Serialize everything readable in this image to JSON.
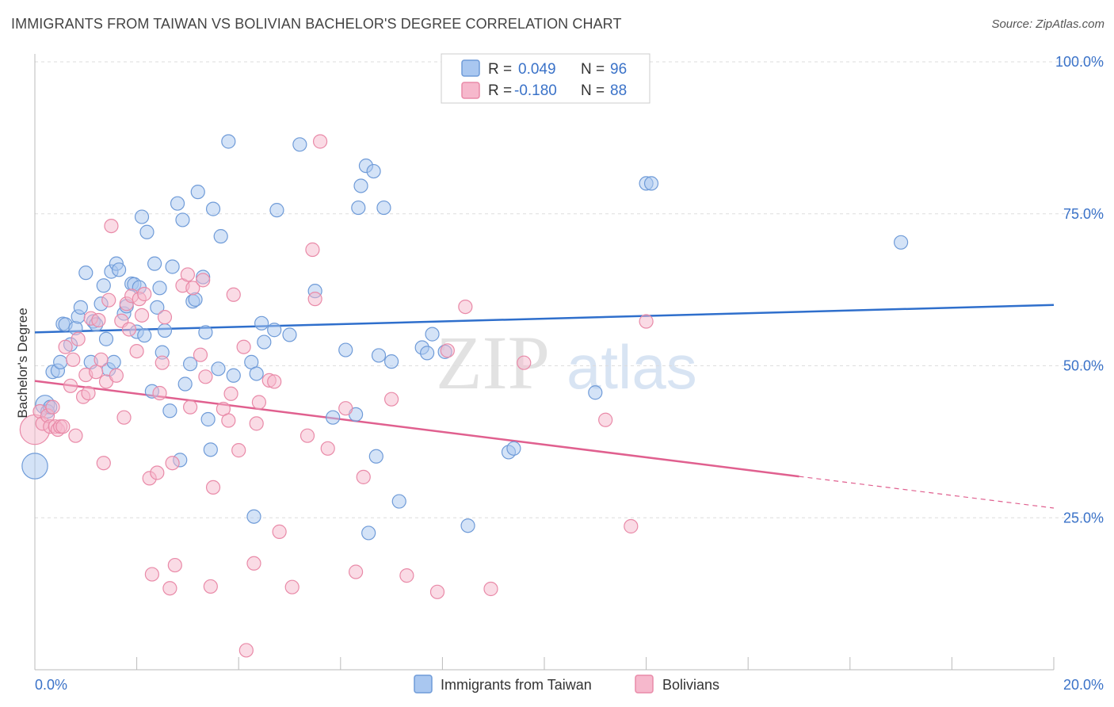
{
  "header": {
    "title": "IMMIGRANTS FROM TAIWAN VS BOLIVIAN BACHELOR'S DEGREE CORRELATION CHART",
    "source": "Source: ZipAtlas.com"
  },
  "watermark": {
    "zip": "ZIP",
    "atlas": "atlas"
  },
  "legend": {
    "r_label": "R =",
    "n_label": "N =",
    "rows": [
      {
        "series": "taiwan",
        "r": "0.049",
        "n": "96"
      },
      {
        "series": "bolivian",
        "r": "-0.180",
        "n": "88"
      }
    ]
  },
  "colors": {
    "taiwan_fill": "#a9c7f0",
    "taiwan_stroke": "#6f9bd8",
    "taiwan_line": "#2f6fcc",
    "bolivian_fill": "#f6b8cc",
    "bolivian_stroke": "#e98aa8",
    "bolivian_line": "#e0608f",
    "tick_text": "#3a72c8",
    "grid": "#dddddd"
  },
  "chart_data": {
    "type": "scatter",
    "title": "IMMIGRANTS FROM TAIWAN VS BOLIVIAN BACHELOR'S DEGREE CORRELATION CHART",
    "xlabel": "",
    "ylabel": "Bachelor's Degree",
    "xlim": [
      0,
      20
    ],
    "ylim": [
      0,
      100
    ],
    "x_tick_labels": [
      "0.0%",
      "20.0%"
    ],
    "y_ticks": [
      25,
      50,
      75,
      100
    ],
    "y_tick_labels": [
      "25.0%",
      "50.0%",
      "75.0%",
      "100.0%"
    ],
    "grid": true,
    "legend_position": "bottom-center",
    "series": [
      {
        "name": "Immigrants from Taiwan",
        "r": 0.049,
        "n": 96,
        "trend": {
          "x": [
            0,
            20
          ],
          "y": [
            55.5,
            60
          ]
        },
        "points": [
          {
            "x": 0.0,
            "y": 33.5,
            "s": 1.9
          },
          {
            "x": 0.2,
            "y": 43.6,
            "s": 1.4
          },
          {
            "x": 0.25,
            "y": 42.5
          },
          {
            "x": 0.3,
            "y": 43.2
          },
          {
            "x": 0.35,
            "y": 49
          },
          {
            "x": 0.45,
            "y": 49.2
          },
          {
            "x": 0.5,
            "y": 50.6
          },
          {
            "x": 0.55,
            "y": 56.9
          },
          {
            "x": 0.6,
            "y": 56.8
          },
          {
            "x": 0.7,
            "y": 53.5
          },
          {
            "x": 0.8,
            "y": 56.2
          },
          {
            "x": 0.85,
            "y": 58.1
          },
          {
            "x": 0.9,
            "y": 59.6
          },
          {
            "x": 1.0,
            "y": 65.3
          },
          {
            "x": 1.1,
            "y": 50.6
          },
          {
            "x": 1.15,
            "y": 57.3
          },
          {
            "x": 1.2,
            "y": 56.8
          },
          {
            "x": 1.3,
            "y": 60.2
          },
          {
            "x": 1.35,
            "y": 63.2
          },
          {
            "x": 1.4,
            "y": 54.4
          },
          {
            "x": 1.45,
            "y": 49.4
          },
          {
            "x": 1.5,
            "y": 65.5
          },
          {
            "x": 1.55,
            "y": 50.6
          },
          {
            "x": 1.6,
            "y": 66.8
          },
          {
            "x": 1.65,
            "y": 65.8
          },
          {
            "x": 1.75,
            "y": 58.6
          },
          {
            "x": 1.8,
            "y": 59.8
          },
          {
            "x": 1.9,
            "y": 63.5
          },
          {
            "x": 1.95,
            "y": 63.4
          },
          {
            "x": 2.0,
            "y": 55.6
          },
          {
            "x": 2.05,
            "y": 62.9
          },
          {
            "x": 2.1,
            "y": 74.5
          },
          {
            "x": 2.15,
            "y": 55
          },
          {
            "x": 2.2,
            "y": 72
          },
          {
            "x": 2.3,
            "y": 45.8
          },
          {
            "x": 2.35,
            "y": 66.8
          },
          {
            "x": 2.4,
            "y": 59.6
          },
          {
            "x": 2.45,
            "y": 62.8
          },
          {
            "x": 2.5,
            "y": 52.2
          },
          {
            "x": 2.55,
            "y": 55.8
          },
          {
            "x": 2.65,
            "y": 42.6
          },
          {
            "x": 2.7,
            "y": 66.3
          },
          {
            "x": 2.8,
            "y": 76.7
          },
          {
            "x": 2.85,
            "y": 34.5
          },
          {
            "x": 2.9,
            "y": 74
          },
          {
            "x": 2.95,
            "y": 47
          },
          {
            "x": 3.05,
            "y": 50.3
          },
          {
            "x": 3.1,
            "y": 60.6
          },
          {
            "x": 3.15,
            "y": 60.9
          },
          {
            "x": 3.2,
            "y": 78.6
          },
          {
            "x": 3.3,
            "y": 64.6
          },
          {
            "x": 3.35,
            "y": 55.5
          },
          {
            "x": 3.4,
            "y": 41.2
          },
          {
            "x": 3.45,
            "y": 36.2
          },
          {
            "x": 3.5,
            "y": 75.8
          },
          {
            "x": 3.6,
            "y": 49.5
          },
          {
            "x": 3.65,
            "y": 71.3
          },
          {
            "x": 3.8,
            "y": 86.9
          },
          {
            "x": 3.9,
            "y": 48.4
          },
          {
            "x": 4.25,
            "y": 50.6
          },
          {
            "x": 4.3,
            "y": 25.2
          },
          {
            "x": 4.35,
            "y": 48.7
          },
          {
            "x": 4.45,
            "y": 57
          },
          {
            "x": 4.5,
            "y": 53.9
          },
          {
            "x": 4.7,
            "y": 55.9
          },
          {
            "x": 4.75,
            "y": 75.6
          },
          {
            "x": 5.0,
            "y": 55.1
          },
          {
            "x": 5.2,
            "y": 86.4
          },
          {
            "x": 5.5,
            "y": 62.3
          },
          {
            "x": 5.85,
            "y": 41.5
          },
          {
            "x": 6.1,
            "y": 52.6
          },
          {
            "x": 6.3,
            "y": 42
          },
          {
            "x": 6.35,
            "y": 76
          },
          {
            "x": 6.4,
            "y": 79.6
          },
          {
            "x": 6.5,
            "y": 82.9
          },
          {
            "x": 6.55,
            "y": 22.5
          },
          {
            "x": 6.65,
            "y": 82
          },
          {
            "x": 6.7,
            "y": 35.1
          },
          {
            "x": 6.75,
            "y": 51.7
          },
          {
            "x": 6.85,
            "y": 76
          },
          {
            "x": 7.0,
            "y": 50.7
          },
          {
            "x": 7.15,
            "y": 27.7
          },
          {
            "x": 7.6,
            "y": 53
          },
          {
            "x": 7.7,
            "y": 52.1
          },
          {
            "x": 7.8,
            "y": 55.2
          },
          {
            "x": 8.05,
            "y": 52.3
          },
          {
            "x": 8.5,
            "y": 23.7
          },
          {
            "x": 9.3,
            "y": 35.8
          },
          {
            "x": 9.4,
            "y": 36.4
          },
          {
            "x": 11.0,
            "y": 45.6
          },
          {
            "x": 12.0,
            "y": 80
          },
          {
            "x": 12.1,
            "y": 80
          },
          {
            "x": 17.0,
            "y": 70.3
          }
        ]
      },
      {
        "name": "Bolivians",
        "r": -0.18,
        "n": 88,
        "trend": {
          "x": [
            0,
            15
          ],
          "y": [
            47.5,
            31.8
          ]
        },
        "trend_dashed": {
          "x": [
            15,
            20
          ],
          "y": [
            31.8,
            26.6
          ]
        },
        "points": [
          {
            "x": 0.0,
            "y": 39.5,
            "s": 2.2
          },
          {
            "x": 0.1,
            "y": 42.5
          },
          {
            "x": 0.15,
            "y": 40.5
          },
          {
            "x": 0.25,
            "y": 41.8
          },
          {
            "x": 0.3,
            "y": 40
          },
          {
            "x": 0.35,
            "y": 43.2
          },
          {
            "x": 0.4,
            "y": 40
          },
          {
            "x": 0.45,
            "y": 39.5
          },
          {
            "x": 0.5,
            "y": 40
          },
          {
            "x": 0.55,
            "y": 40
          },
          {
            "x": 0.6,
            "y": 53.1
          },
          {
            "x": 0.7,
            "y": 46.7
          },
          {
            "x": 0.75,
            "y": 51
          },
          {
            "x": 0.8,
            "y": 38.5
          },
          {
            "x": 0.85,
            "y": 54.4
          },
          {
            "x": 0.95,
            "y": 44.9
          },
          {
            "x": 1.0,
            "y": 48.5
          },
          {
            "x": 1.05,
            "y": 45.5
          },
          {
            "x": 1.1,
            "y": 57.8
          },
          {
            "x": 1.2,
            "y": 49
          },
          {
            "x": 1.25,
            "y": 57.5
          },
          {
            "x": 1.3,
            "y": 51
          },
          {
            "x": 1.35,
            "y": 34
          },
          {
            "x": 1.4,
            "y": 47.4
          },
          {
            "x": 1.45,
            "y": 60.8
          },
          {
            "x": 1.5,
            "y": 73
          },
          {
            "x": 1.6,
            "y": 48.4
          },
          {
            "x": 1.7,
            "y": 57.4
          },
          {
            "x": 1.75,
            "y": 41.5
          },
          {
            "x": 1.8,
            "y": 60.2
          },
          {
            "x": 1.85,
            "y": 56
          },
          {
            "x": 1.9,
            "y": 61.5
          },
          {
            "x": 2.0,
            "y": 52.4
          },
          {
            "x": 2.05,
            "y": 61
          },
          {
            "x": 2.1,
            "y": 58.3
          },
          {
            "x": 2.15,
            "y": 61.8
          },
          {
            "x": 2.25,
            "y": 31.5
          },
          {
            "x": 2.3,
            "y": 15.7
          },
          {
            "x": 2.4,
            "y": 32.4
          },
          {
            "x": 2.45,
            "y": 45.5
          },
          {
            "x": 2.5,
            "y": 50.5
          },
          {
            "x": 2.55,
            "y": 58
          },
          {
            "x": 2.65,
            "y": 13.4
          },
          {
            "x": 2.7,
            "y": 34
          },
          {
            "x": 2.75,
            "y": 17.2
          },
          {
            "x": 2.9,
            "y": 63.2
          },
          {
            "x": 3.0,
            "y": 65
          },
          {
            "x": 3.05,
            "y": 43.2
          },
          {
            "x": 3.1,
            "y": 62.8
          },
          {
            "x": 3.25,
            "y": 51.8
          },
          {
            "x": 3.3,
            "y": 64.1
          },
          {
            "x": 3.35,
            "y": 48.2
          },
          {
            "x": 3.45,
            "y": 13.7
          },
          {
            "x": 3.5,
            "y": 30
          },
          {
            "x": 3.7,
            "y": 42.9
          },
          {
            "x": 3.8,
            "y": 41
          },
          {
            "x": 3.85,
            "y": 45.4
          },
          {
            "x": 3.9,
            "y": 61.7
          },
          {
            "x": 4.0,
            "y": 36.1
          },
          {
            "x": 4.1,
            "y": 53.1
          },
          {
            "x": 4.15,
            "y": 3.2
          },
          {
            "x": 4.3,
            "y": 17.5
          },
          {
            "x": 4.35,
            "y": 40.5
          },
          {
            "x": 4.4,
            "y": 44
          },
          {
            "x": 4.6,
            "y": 47.6
          },
          {
            "x": 4.7,
            "y": 47.4
          },
          {
            "x": 4.8,
            "y": 22.7
          },
          {
            "x": 5.05,
            "y": 13.6
          },
          {
            "x": 5.35,
            "y": 38.5
          },
          {
            "x": 5.45,
            "y": 69.1
          },
          {
            "x": 5.5,
            "y": 61
          },
          {
            "x": 5.6,
            "y": 86.9
          },
          {
            "x": 5.75,
            "y": 36.4
          },
          {
            "x": 6.1,
            "y": 43
          },
          {
            "x": 6.3,
            "y": 16.1
          },
          {
            "x": 6.45,
            "y": 31.7
          },
          {
            "x": 7.0,
            "y": 44.5
          },
          {
            "x": 7.3,
            "y": 15.5
          },
          {
            "x": 7.9,
            "y": 12.8
          },
          {
            "x": 8.1,
            "y": 52.5
          },
          {
            "x": 8.45,
            "y": 59.7
          },
          {
            "x": 8.95,
            "y": 13.3
          },
          {
            "x": 9.6,
            "y": 50.5
          },
          {
            "x": 11.2,
            "y": 41.1
          },
          {
            "x": 11.7,
            "y": 23.6
          },
          {
            "x": 12.0,
            "y": 57.3
          }
        ]
      }
    ]
  },
  "bottom_legend": {
    "items": [
      {
        "series": "taiwan",
        "label": "Immigrants from Taiwan"
      },
      {
        "series": "bolivian",
        "label": "Bolivians"
      }
    ]
  }
}
